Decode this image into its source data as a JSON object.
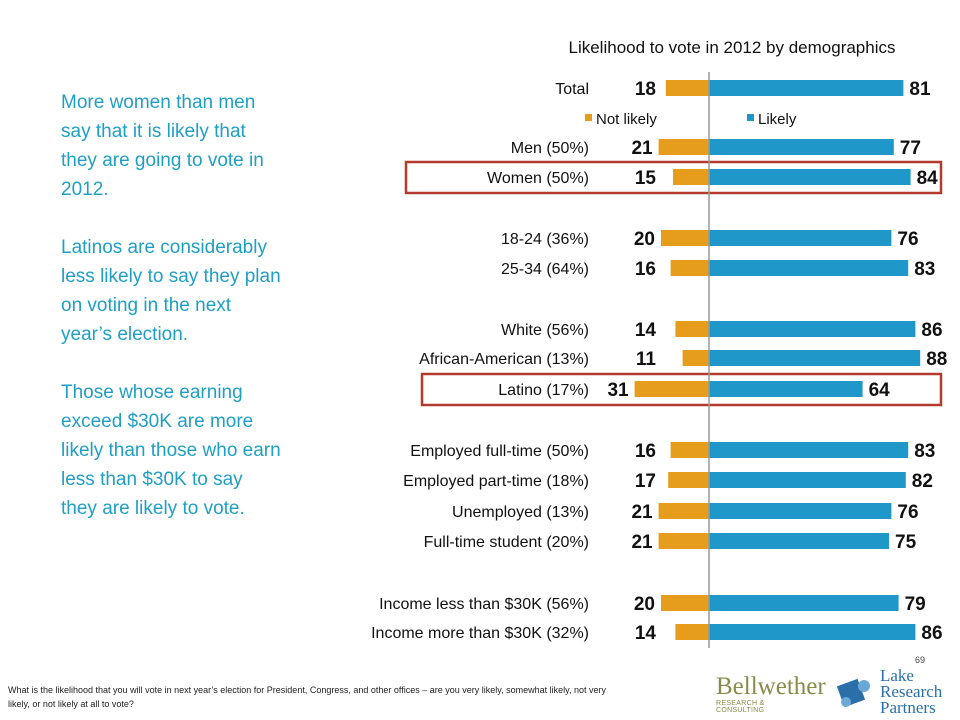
{
  "chart_data": {
    "type": "bar",
    "title": "Likelihood to vote in 2012 by demographics",
    "series": [
      {
        "name": "Not likely",
        "color": "#e69d1c"
      },
      {
        "name": "Likely",
        "color": "#1f97c9"
      }
    ],
    "rows": [
      {
        "label": "Total",
        "not_likely": 18,
        "likely": 81,
        "highlighted": false
      },
      {
        "label": "Men (50%)",
        "not_likely": 21,
        "likely": 77,
        "highlighted": false
      },
      {
        "label": "Women (50%)",
        "not_likely": 15,
        "likely": 84,
        "highlighted": true
      },
      {
        "label": "18-24 (36%)",
        "not_likely": 20,
        "likely": 76,
        "highlighted": false
      },
      {
        "label": "25-34 (64%)",
        "not_likely": 16,
        "likely": 83,
        "highlighted": false
      },
      {
        "label": "White (56%)",
        "not_likely": 14,
        "likely": 86,
        "highlighted": false
      },
      {
        "label": "African-American (13%)",
        "not_likely": 11,
        "likely": 88,
        "highlighted": false
      },
      {
        "label": "Latino (17%)",
        "not_likely": 31,
        "likely": 64,
        "highlighted": true
      },
      {
        "label": "Employed full-time (50%)",
        "not_likely": 16,
        "likely": 83,
        "highlighted": false
      },
      {
        "label": "Employed part-time (18%)",
        "not_likely": 17,
        "likely": 82,
        "highlighted": false
      },
      {
        "label": "Unemployed (13%)",
        "not_likely": 21,
        "likely": 76,
        "highlighted": false
      },
      {
        "label": "Full-time student (20%)",
        "not_likely": 21,
        "likely": 75,
        "highlighted": false
      },
      {
        "label": "Income less than $30K (56%)",
        "not_likely": 20,
        "likely": 79,
        "highlighted": false
      },
      {
        "label": "Income more than $30K (32%)",
        "not_likely": 14,
        "likely": 86,
        "highlighted": false
      }
    ],
    "highlight_color": "#b23a2e"
  },
  "sidebar": {
    "paragraphs": [
      "More women than men say that it is likely that they are going to vote in 2012.",
      "Latinos are considerably less likely to say they plan on voting in the next year’s election.",
      "Those whose earning exceed $30K are more likely than those who earn less than $30K to say they are likely to vote."
    ]
  },
  "footer": {
    "question": "What is the likelihood that you will vote in next year’s election for President, Congress, and other offices – are you very likely, somewhat likely, not very likely, or not likely at all to vote?",
    "page_number": "69",
    "logo_bellwether": "Bellwether",
    "logo_bellwether_sub": "RESEARCH & CONSULTING",
    "logo_lake": "Lake Research Partners"
  }
}
